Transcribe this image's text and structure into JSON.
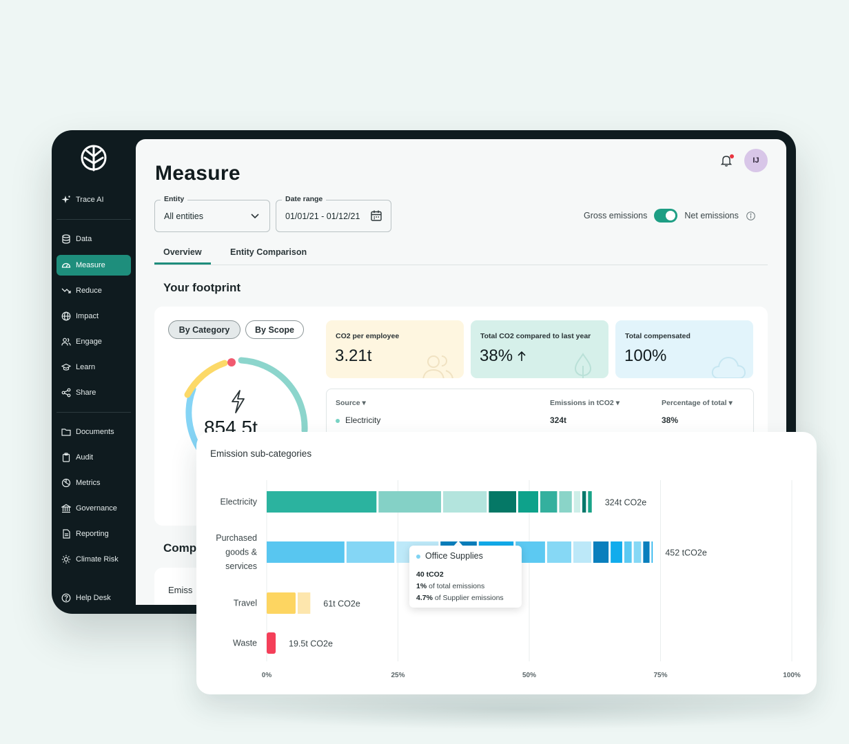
{
  "sidebar": {
    "items": [
      {
        "label": "Trace AI",
        "icon": "sparkle-icon"
      },
      {
        "label": "Data",
        "icon": "database-icon"
      },
      {
        "label": "Measure",
        "icon": "gauge-icon",
        "active": true
      },
      {
        "label": "Reduce",
        "icon": "trend-down-icon"
      },
      {
        "label": "Impact",
        "icon": "globe-icon"
      },
      {
        "label": "Engage",
        "icon": "users-icon"
      },
      {
        "label": "Learn",
        "icon": "graduation-cap-icon"
      },
      {
        "label": "Share",
        "icon": "share-icon"
      },
      {
        "label": "Documents",
        "icon": "folder-icon"
      },
      {
        "label": "Audit",
        "icon": "clipboard-icon"
      },
      {
        "label": "Metrics",
        "icon": "metrics-icon"
      },
      {
        "label": "Governance",
        "icon": "bank-icon"
      },
      {
        "label": "Reporting",
        "icon": "file-icon"
      },
      {
        "label": "Climate Risk",
        "icon": "sun-icon"
      }
    ],
    "help": {
      "label": "Help Desk",
      "icon": "help-circle-icon"
    }
  },
  "header": {
    "title": "Measure",
    "avatar_initials": "IJ"
  },
  "filters": {
    "entity": {
      "label": "Entity",
      "value": "All entities"
    },
    "date_range": {
      "label": "Date range",
      "value": "01/01/21 - 01/12/21"
    },
    "toggle": {
      "left_label": "Gross emissions",
      "right_label": "Net emissions",
      "on": true
    }
  },
  "tabs": [
    {
      "label": "Overview",
      "active": true
    },
    {
      "label": "Entity Comparison",
      "active": false
    }
  ],
  "footprint": {
    "title": "Your footprint",
    "view_buttons": [
      {
        "label": "By Category",
        "selected": true
      },
      {
        "label": "By Scope",
        "selected": false
      }
    ],
    "total": "854.5t",
    "kpis": [
      {
        "label": "CO2 per employee",
        "value": "3.21t",
        "color": "#fef6e0"
      },
      {
        "label": "Total CO2 compared to last year",
        "value": "38%",
        "color": "#d6f0ea"
      },
      {
        "label": "Total compensated",
        "value": "100%",
        "color": "#e2f4fb"
      }
    ],
    "table": {
      "headers": [
        "Source",
        "Emissions in tCO2",
        "Percentage of total"
      ],
      "rows": [
        [
          "Electricity",
          "324t",
          "38%"
        ]
      ]
    }
  },
  "comparison": {
    "title": "Comp",
    "card_label": "Emiss"
  },
  "chart_panel": {
    "title": "Emission sub-categories",
    "tooltip": {
      "title": "Office Supplies",
      "value": "40 tCO2",
      "line1_bold": "1%",
      "line1_text": "of total emissions",
      "line2_bold": "4.7%",
      "line2_text": "of Supplier emissions"
    }
  },
  "chart_data": {
    "type": "bar",
    "orientation": "horizontal-stacked",
    "x_ticks": [
      "0%",
      "25%",
      "50%",
      "75%",
      "100%"
    ],
    "xlim": [
      0,
      100
    ],
    "categories": [
      {
        "name": "Electricity",
        "label_lines": [
          "Electricity"
        ],
        "total_label": "324t CO2e",
        "segments": [
          {
            "value": 21.3,
            "color": "#2bb39f"
          },
          {
            "value": 12.3,
            "color": "#84d1c6"
          },
          {
            "value": 8.7,
            "color": "#b3e4dd"
          },
          {
            "value": 5.6,
            "color": "#057866"
          },
          {
            "value": 4.2,
            "color": "#0ea28b"
          },
          {
            "value": 3.6,
            "color": "#34b09e"
          },
          {
            "value": 2.8,
            "color": "#8ad4c8"
          },
          {
            "value": 1.6,
            "color": "#cdeee8"
          },
          {
            "value": 1.1,
            "color": "#05786a"
          },
          {
            "value": 1.1,
            "color": "#19a488"
          }
        ]
      },
      {
        "name": "Purchased goods & services",
        "label_lines": [
          "Purchased",
          "goods &",
          "services"
        ],
        "total_label": "452 tCO2e",
        "segments": [
          {
            "value": 15.2,
            "color": "#58c6f0"
          },
          {
            "value": 9.5,
            "color": "#84d6f5"
          },
          {
            "value": 8.4,
            "color": "#bde9f9"
          },
          {
            "value": 7.3,
            "color": "#0a7fbd"
          },
          {
            "value": 7.0,
            "color": "#12acec"
          },
          {
            "value": 6.0,
            "color": "#5cc9f2"
          },
          {
            "value": 5.0,
            "color": "#86d8f5"
          },
          {
            "value": 3.8,
            "color": "#bce8f8"
          },
          {
            "value": 3.3,
            "color": "#0a7fbd"
          },
          {
            "value": 2.6,
            "color": "#12acec"
          },
          {
            "value": 1.8,
            "color": "#5cc9f2"
          },
          {
            "value": 1.8,
            "color": "#86d8f5"
          },
          {
            "value": 1.6,
            "color": "#0a7fbd"
          },
          {
            "value": 0.5,
            "color": "#12acec"
          }
        ]
      },
      {
        "name": "Travel",
        "label_lines": [
          "Travel"
        ],
        "total_label": "61t CO2e",
        "segments": [
          {
            "value": 5.9,
            "color": "#fdd561"
          },
          {
            "value": 2.8,
            "color": "#fde6ad"
          }
        ]
      },
      {
        "name": "Waste",
        "label_lines": [
          "Waste"
        ],
        "total_label": "19.5t CO2e",
        "segments": [
          {
            "value": 2.1,
            "color": "#f43f59"
          }
        ]
      }
    ],
    "grid": true
  }
}
